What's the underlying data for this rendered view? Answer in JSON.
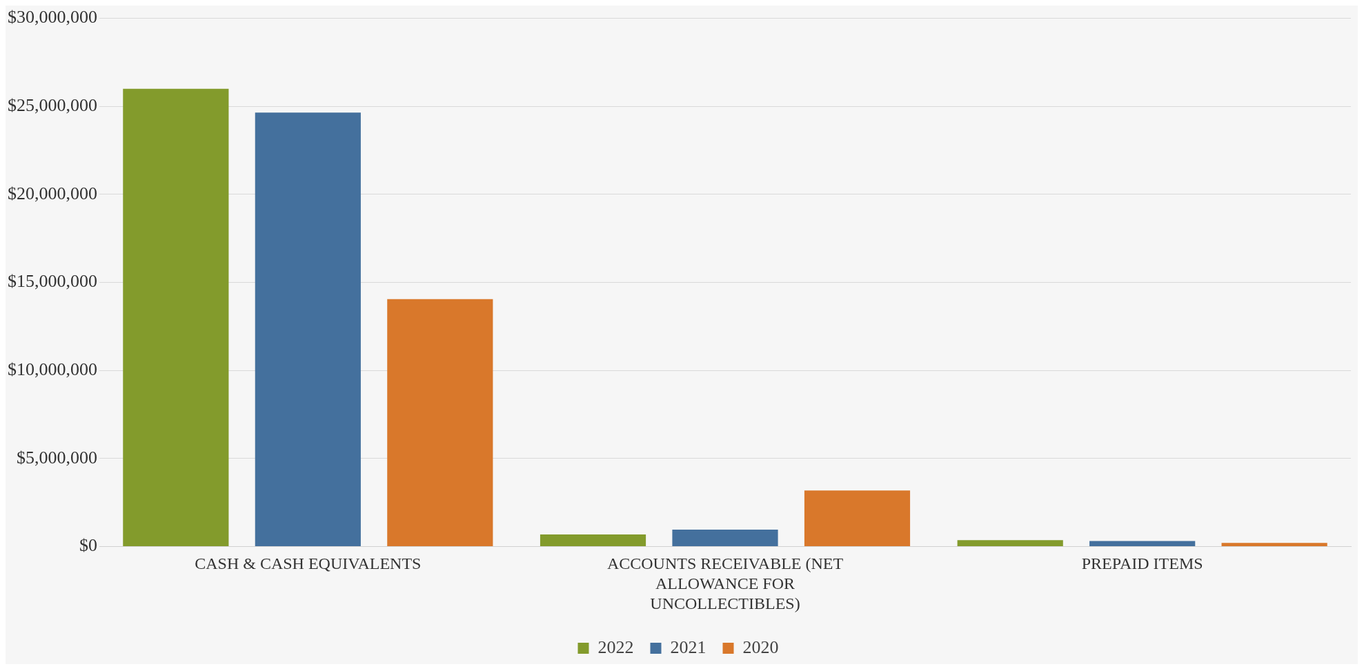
{
  "chart_data": {
    "type": "bar",
    "categories": [
      "CASH & CASH EQUIVALENTS",
      "ACCOUNTS RECEIVABLE (NET ALLOWANCE FOR UNCOLLECTIBLES)",
      "PREPAID ITEMS"
    ],
    "series": [
      {
        "name": "2022",
        "color": "#839b2c",
        "values": [
          26000000,
          690000,
          370000
        ]
      },
      {
        "name": "2021",
        "color": "#44709d",
        "values": [
          24650000,
          960000,
          320000
        ]
      },
      {
        "name": "2020",
        "color": "#d9782b",
        "values": [
          14050000,
          3190000,
          210000
        ]
      }
    ],
    "ylim": [
      0,
      30000000
    ],
    "yticks": [
      {
        "value": 0,
        "label": "$0"
      },
      {
        "value": 5000000,
        "label": "$5,000,000"
      },
      {
        "value": 10000000,
        "label": "$10,000,000"
      },
      {
        "value": 15000000,
        "label": "$15,000,000"
      },
      {
        "value": 20000000,
        "label": "$20,000,000"
      },
      {
        "value": 25000000,
        "label": "$25,000,000"
      },
      {
        "value": 30000000,
        "label": "$30,000,000"
      }
    ],
    "grid": "y",
    "legend": "bottom"
  }
}
